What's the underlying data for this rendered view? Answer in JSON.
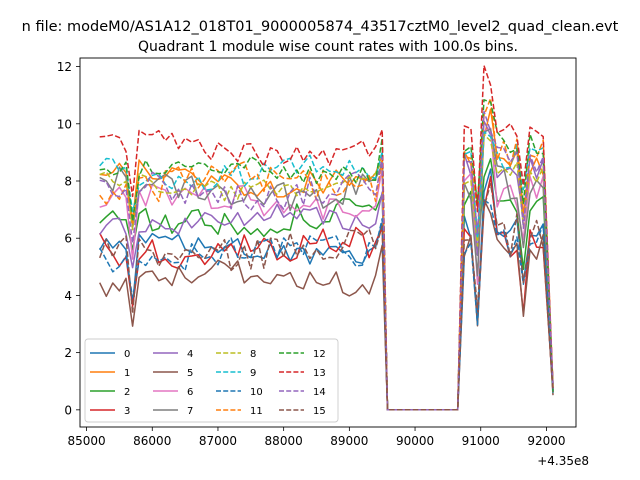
{
  "figure": {
    "suptitle": "n file: modeM0/AS1A12_018T01_9000005874_43517cztM0_level2_quad_clean.evt",
    "title": "Quadrant 1 module wise count rates with 100.0s bins.",
    "x_offset_label": "+4.35e8"
  },
  "chart_data": {
    "type": "line",
    "title": "Quadrant 1 module wise count rates with 100.0s bins.",
    "xlabel": "",
    "ylabel": "",
    "xlim": [
      84900,
      92450
    ],
    "ylim": [
      -0.6,
      12.3
    ],
    "x_ticks": [
      85000,
      86000,
      87000,
      88000,
      89000,
      90000,
      91000,
      92000
    ],
    "y_ticks": [
      0,
      2,
      4,
      6,
      8,
      10,
      12
    ],
    "x_tick_labels": [
      "85000",
      "86000",
      "87000",
      "88000",
      "89000",
      "90000",
      "91000",
      "92000"
    ],
    "y_tick_labels": [
      "0",
      "2",
      "4",
      "6",
      "8",
      "10",
      "12"
    ],
    "grid": false,
    "legend_placement": "lower-left",
    "legend_columns": 4,
    "time_ranges": [
      {
        "start": 85200,
        "end": 89500
      },
      {
        "start": 90650,
        "end": 92100
      }
    ],
    "series": [
      {
        "name": "0",
        "color": "#1f77b4",
        "dash": "solid",
        "level1": 5.6,
        "level2": 6.4
      },
      {
        "name": "1",
        "color": "#ff7f0e",
        "dash": "solid",
        "level1": 8.1,
        "level2": 8.6
      },
      {
        "name": "2",
        "color": "#2ca02c",
        "dash": "solid",
        "level1": 6.7,
        "level2": 7.3
      },
      {
        "name": "3",
        "color": "#d62728",
        "dash": "solid",
        "level1": 5.6,
        "level2": 6.1
      },
      {
        "name": "4",
        "color": "#9467bd",
        "dash": "solid",
        "level1": 6.6,
        "level2": 8.5
      },
      {
        "name": "5",
        "color": "#8c564b",
        "dash": "solid",
        "level1": 4.6,
        "level2": 5.6
      },
      {
        "name": "6",
        "color": "#e377c2",
        "dash": "solid",
        "level1": 7.3,
        "level2": 7.6
      },
      {
        "name": "7",
        "color": "#7f7f7f",
        "dash": "solid",
        "level1": 7.8,
        "level2": 8.0
      },
      {
        "name": "8",
        "color": "#bcbd22",
        "dash": "dashed",
        "level1": 7.9,
        "level2": 8.3
      },
      {
        "name": "9",
        "color": "#17becf",
        "dash": "dashed",
        "level1": 8.3,
        "level2": 8.8
      },
      {
        "name": "10",
        "color": "#1f77b4",
        "dash": "dashed",
        "level1": 5.5,
        "level2": 6.0
      },
      {
        "name": "11",
        "color": "#ff7f0e",
        "dash": "dashed",
        "level1": 7.9,
        "level2": 8.7
      },
      {
        "name": "12",
        "color": "#2ca02c",
        "dash": "dashed",
        "level1": 8.4,
        "level2": 9.3
      },
      {
        "name": "13",
        "color": "#d62728",
        "dash": "dashed",
        "level1": 9.1,
        "level2": 10.1
      },
      {
        "name": "14",
        "color": "#9467bd",
        "dash": "dashed",
        "level1": 7.7,
        "level2": 8.6
      },
      {
        "name": "15",
        "color": "#8c564b",
        "dash": "dashed",
        "level1": 5.6,
        "level2": 6.1
      }
    ]
  }
}
